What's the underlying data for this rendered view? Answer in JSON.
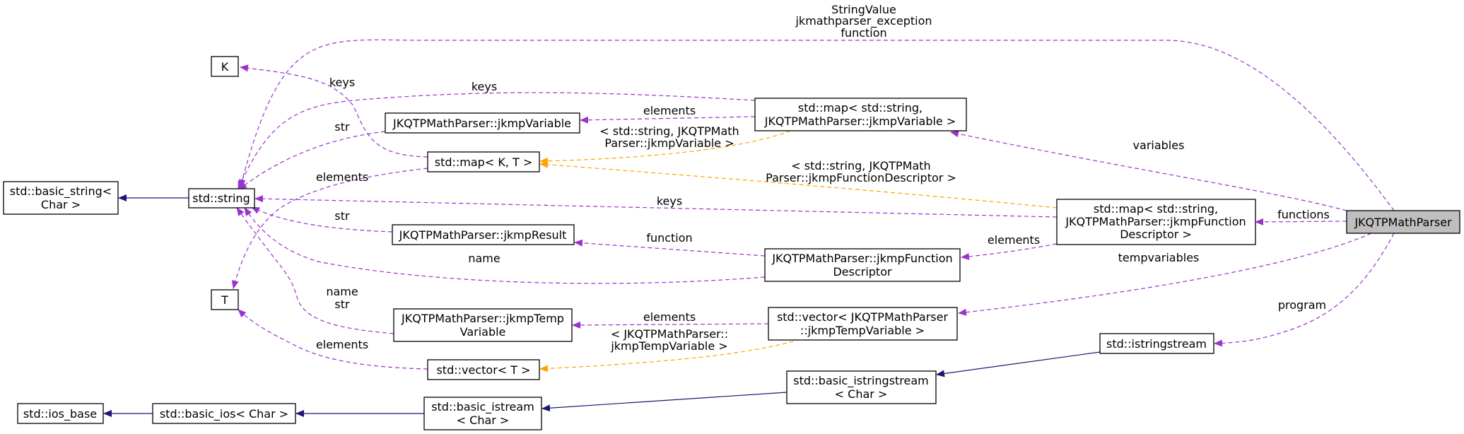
{
  "colors": {
    "usage_edge": "#9a32cd",
    "template_edge": "#ffa500",
    "inheritance_edge": "#191970",
    "main_node_fill": "#bfbfbf"
  },
  "nodes": {
    "main": "JKQTPMathParser",
    "k": "K",
    "t": "T",
    "basic_string": [
      "std::basic_string<",
      "Char >"
    ],
    "string": "std::string",
    "jkmp_variable": "JKQTPMathParser::jkmpVariable",
    "map_kt": "std::map< K, T >",
    "jkmp_result": "JKQTPMathParser::jkmpResult",
    "jkmp_temp_variable": [
      "JKQTPMathParser::jkmpTemp",
      "Variable"
    ],
    "vector_t": "std::vector< T >",
    "ios_base": "std::ios_base",
    "basic_ios": "std::basic_ios< Char >",
    "basic_istream": [
      "std::basic_istream",
      "< Char >"
    ],
    "map_variable": [
      "std::map< std::string,",
      "JKQTPMathParser::jkmpVariable >"
    ],
    "jkmp_function_descriptor": [
      "JKQTPMathParser::jkmpFunction",
      "Descriptor"
    ],
    "vector_temp_variable": [
      "std::vector< JKQTPMathParser",
      "::jkmpTempVariable >"
    ],
    "basic_istringstream": [
      "std::basic_istringstream",
      "< Char >"
    ],
    "map_function": [
      "std::map< std::string,",
      "JKQTPMathParser::jkmpFunction",
      "Descriptor >"
    ],
    "istringstream": "std::istringstream"
  },
  "edge_labels": {
    "top": [
      "StringValue",
      "jkmathparser_exception",
      "function"
    ],
    "keys_k": "keys",
    "keys_mapvar": "keys",
    "str_variable": "str",
    "elements_t_map": "elements",
    "keys_mapfunc": "keys",
    "str_result": "str",
    "name_funcdesc": "name",
    "name_str_temp": [
      "name",
      "str"
    ],
    "elements_t_vector": "elements",
    "elements_variable": "elements",
    "tmpl_map_variable": [
      "< std::string, JKQTPMath",
      "Parser::jkmpVariable >"
    ],
    "tmpl_map_function": [
      "< std::string, JKQTPMath",
      "Parser::jkmpFunctionDescriptor >"
    ],
    "function_result": "function",
    "elements_temp": "elements",
    "tmpl_vector_temp": [
      "< JKQTPMathParser::",
      "jkmpTempVariable >"
    ],
    "variables": "variables",
    "functions": "functions",
    "elements_funcdesc": "elements",
    "tempvariables": "tempvariables",
    "program": "program"
  }
}
